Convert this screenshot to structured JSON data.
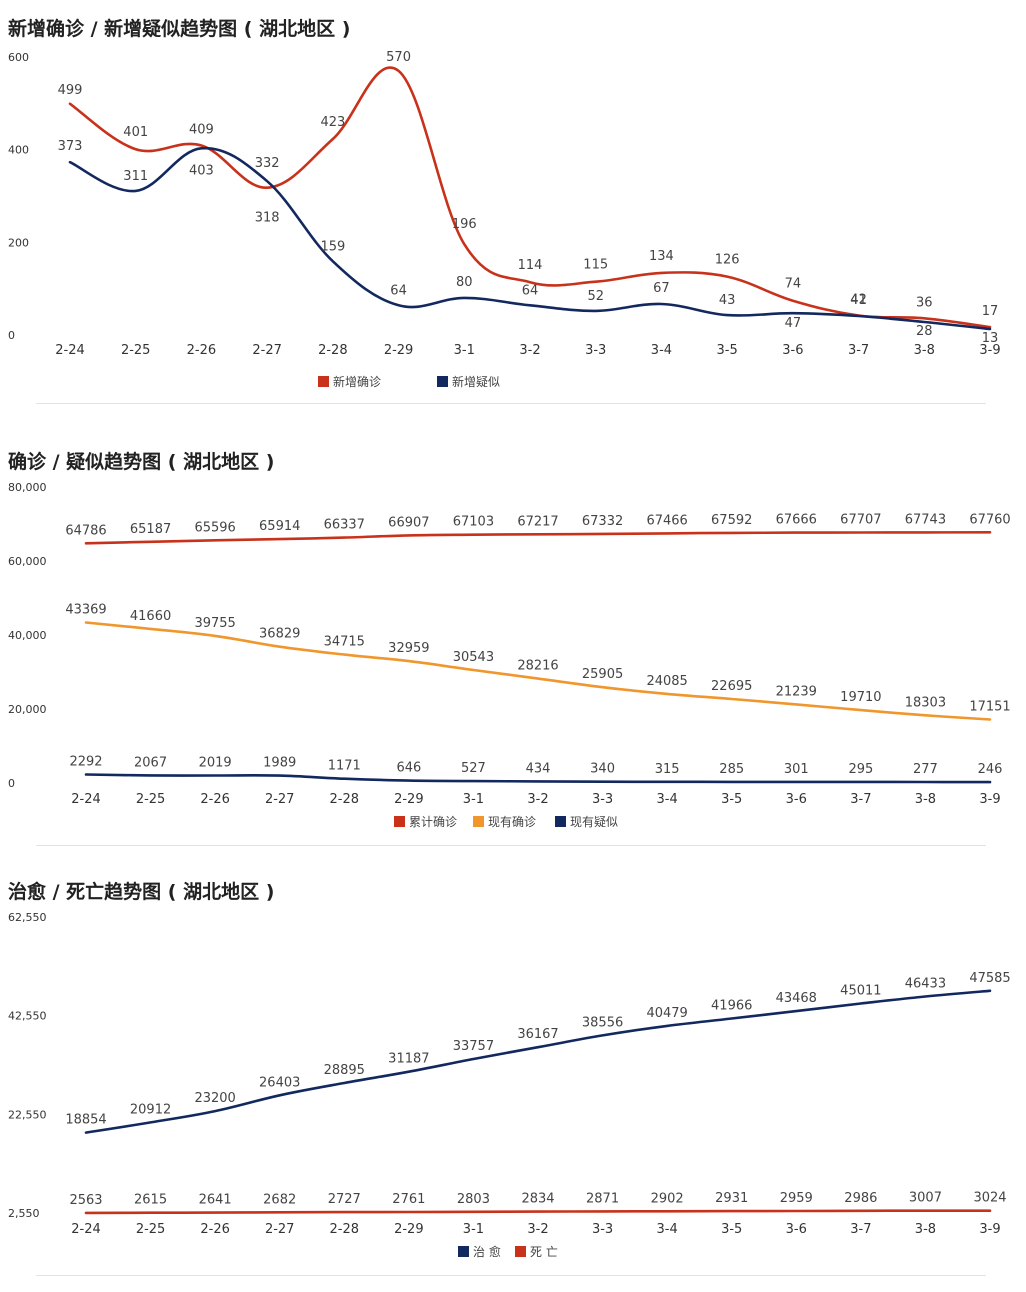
{
  "colors": {
    "red": "#c8321b",
    "navy": "#12285e",
    "orange": "#f0962d"
  },
  "chart_data": [
    {
      "type": "line",
      "title": "新增确诊 / 新增疑似趋势图 ( 湖北地区 )",
      "categories": [
        "2-24",
        "2-25",
        "2-26",
        "2-27",
        "2-28",
        "2-29",
        "3-1",
        "3-2",
        "3-3",
        "3-4",
        "3-5",
        "3-6",
        "3-7",
        "3-8",
        "3-9"
      ],
      "yticks": [
        "600",
        "400",
        "200",
        "0"
      ],
      "ylim": [
        0,
        600
      ],
      "smooth": true,
      "series": [
        {
          "name": "新增确诊",
          "color": "#c8321b",
          "values": [
            499,
            401,
            409,
            318,
            423,
            570,
            196,
            114,
            115,
            134,
            126,
            74,
            42,
            36,
            17
          ]
        },
        {
          "name": "新增疑似",
          "color": "#12285e",
          "values": [
            373,
            311,
            403,
            332,
            159,
            64,
            80,
            64,
            52,
            67,
            43,
            47,
            41,
            28,
            13
          ]
        }
      ],
      "legend_position": "bottom-center"
    },
    {
      "type": "line",
      "title": "确诊 / 疑似趋势图 ( 湖北地区 )",
      "categories": [
        "2-24",
        "2-25",
        "2-26",
        "2-27",
        "2-28",
        "2-29",
        "3-1",
        "3-2",
        "3-3",
        "3-4",
        "3-5",
        "3-6",
        "3-7",
        "3-8",
        "3-9"
      ],
      "yticks": [
        "80,000",
        "60,000",
        "40,000",
        "20,000",
        "0"
      ],
      "ylim": [
        0,
        80000
      ],
      "smooth": true,
      "series": [
        {
          "name": "累计确诊",
          "color": "#c8321b",
          "values": [
            64786,
            65187,
            65596,
            65914,
            66337,
            66907,
            67103,
            67217,
            67332,
            67466,
            67592,
            67666,
            67707,
            67743,
            67760
          ]
        },
        {
          "name": "现有确诊",
          "color": "#f0962d",
          "values": [
            43369,
            41660,
            39755,
            36829,
            34715,
            32959,
            30543,
            28216,
            25905,
            24085,
            22695,
            21239,
            19710,
            18303,
            17151
          ]
        },
        {
          "name": "现有疑似",
          "color": "#12285e",
          "values": [
            2292,
            2067,
            2019,
            1989,
            1171,
            646,
            527,
            434,
            340,
            315,
            285,
            301,
            295,
            277,
            246
          ]
        }
      ],
      "legend_position": "bottom-center"
    },
    {
      "type": "line",
      "title": "治愈 / 死亡趋势图 ( 湖北地区 )",
      "categories": [
        "2-24",
        "2-25",
        "2-26",
        "2-27",
        "2-28",
        "2-29",
        "3-1",
        "3-2",
        "3-3",
        "3-4",
        "3-5",
        "3-6",
        "3-7",
        "3-8",
        "3-9"
      ],
      "yticks": [
        "62,550",
        "42,550",
        "22,550",
        "2,550"
      ],
      "ylim": [
        2550,
        62550
      ],
      "smooth": true,
      "series": [
        {
          "name": "治 愈",
          "color": "#12285e",
          "values": [
            18854,
            20912,
            23200,
            26403,
            28895,
            31187,
            33757,
            36167,
            38556,
            40479,
            41966,
            43468,
            45011,
            46433,
            47585
          ]
        },
        {
          "name": "死 亡",
          "color": "#c8321b",
          "values": [
            2563,
            2615,
            2641,
            2682,
            2727,
            2761,
            2803,
            2834,
            2871,
            2902,
            2931,
            2959,
            2986,
            3007,
            3024
          ]
        }
      ],
      "legend_position": "bottom-center"
    }
  ]
}
